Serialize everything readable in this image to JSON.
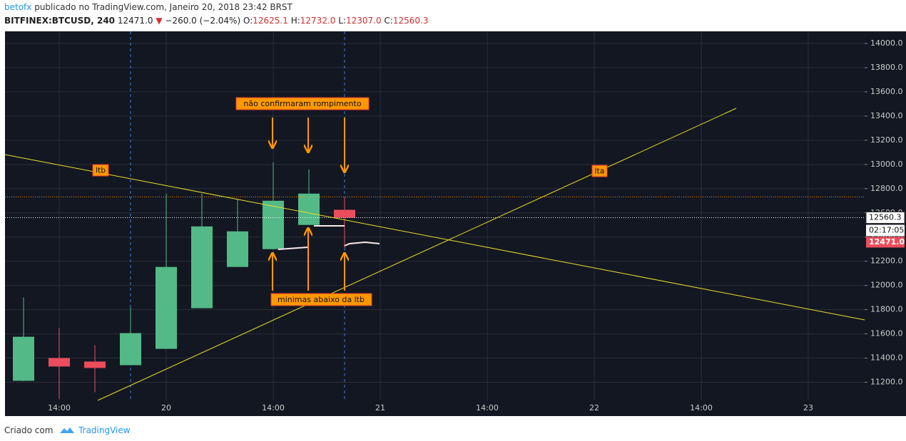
{
  "header": {
    "author": "betofx",
    "published": "publicado no TradingView.com, Janeiro 20, 2018 23:42 BRST",
    "symbol": "BITFINEX:BTCUSD, 240",
    "last": "12471.0",
    "change": "−260.0 (−2.04%)",
    "o_label": "O:",
    "o": "12625.1",
    "h_label": "H:",
    "h": "12732.0",
    "l_label": "L:",
    "l": "12307.0",
    "c_label": "C:",
    "c": "12560.3"
  },
  "chart_data": {
    "type": "candlestick",
    "x": [
      0,
      1,
      2,
      3,
      4,
      5,
      6,
      7,
      8,
      9
    ],
    "open": [
      11212,
      11400,
      11371,
      11341,
      11476,
      11812,
      12153,
      12300,
      12500,
      12625.1
    ],
    "high": [
      11900,
      11650,
      11506,
      11818,
      12759,
      12759,
      12712,
      13018,
      12959,
      12732
    ],
    "low": [
      11210,
      11060,
      11118,
      11341,
      11476,
      11812,
      12153,
      12300,
      12500,
      12307
    ],
    "close": [
      11576,
      11330,
      11318,
      11606,
      12153,
      12488,
      12447,
      12700,
      12759,
      12560.3
    ],
    "up_color": "#53b987",
    "down_color": "#eb4d5c",
    "xlim": [
      -0.52,
      23.58
    ],
    "xticks": [
      {
        "value": 1,
        "label": "14:00"
      },
      {
        "value": 4,
        "label": "20"
      },
      {
        "value": 7,
        "label": "14:00"
      },
      {
        "value": 10,
        "label": "21"
      },
      {
        "value": 13,
        "label": "14:00"
      },
      {
        "value": 16,
        "label": "22"
      },
      {
        "value": 19,
        "label": "14:00"
      },
      {
        "value": 22,
        "label": "23"
      }
    ],
    "ylim": [
      11050,
      14100
    ],
    "yticks": [
      {
        "value": 11200,
        "label": "11200.0"
      },
      {
        "value": 11400,
        "label": "11400.0"
      },
      {
        "value": 11600,
        "label": "11600.0"
      },
      {
        "value": 11800,
        "label": "11800.0"
      },
      {
        "value": 12000,
        "label": "12000.0"
      },
      {
        "value": 12200,
        "label": "12200.0"
      },
      {
        "value": 12400,
        "label": "12400.0"
      },
      {
        "value": 12600,
        "label": "12600.0"
      },
      {
        "value": 12800,
        "label": "12800.0"
      },
      {
        "value": 13000,
        "label": "13000.0"
      },
      {
        "value": 13200,
        "label": "13200.0"
      },
      {
        "value": 13400,
        "label": "13400.0"
      },
      {
        "value": 13600,
        "label": "13600.0"
      },
      {
        "value": 13800,
        "label": "13800.0"
      },
      {
        "value": 14000,
        "label": "14000.0"
      }
    ],
    "grid": true,
    "countdown": "02:17:05",
    "last_price": {
      "value": 12471,
      "label": "12471.0"
    },
    "annotations": [
      "não confirmaram rompimento",
      "minimas abaixo da ltb",
      "ltb",
      "lta"
    ]
  },
  "footer": {
    "made_with": "Criado com",
    "brand": "TradingView"
  }
}
